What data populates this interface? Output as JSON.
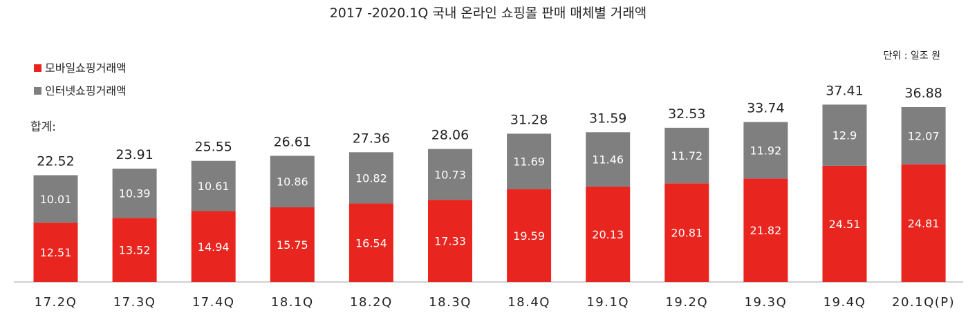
{
  "chart_data": {
    "type": "bar",
    "stacked": true,
    "title": "2017 -2020.1Q 국내 온라인 쇼핑몰 판매 매체별 거래액",
    "unit_label": "단위 : 일조 원",
    "total_label": "합계:",
    "categories": [
      "17.2Q",
      "17.3Q",
      "17.4Q",
      "18.1Q",
      "18.2Q",
      "18.3Q",
      "18.4Q",
      "19.1Q",
      "19.2Q",
      "19.3Q",
      "19.4Q",
      "20.1Q(P)"
    ],
    "series": [
      {
        "name": "모바일쇼핑거래액",
        "color": "#e8251e",
        "values": [
          12.51,
          13.52,
          14.94,
          15.75,
          16.54,
          17.33,
          19.59,
          20.13,
          20.81,
          21.82,
          24.51,
          24.81
        ]
      },
      {
        "name": "인터넷쇼핑거래액",
        "color": "#7f7f7f",
        "values": [
          10.01,
          10.39,
          10.61,
          10.86,
          10.82,
          10.73,
          11.69,
          11.46,
          11.72,
          11.92,
          12.9,
          12.07
        ]
      }
    ],
    "totals": [
      "22.52",
      "23.91",
      "25.55",
      "26.61",
      "27.36",
      "28.06",
      "31.28",
      "31.59",
      "32.53",
      "33.74",
      "37.41",
      "36.88"
    ],
    "ylim": [
      0,
      45
    ],
    "grid": false,
    "legend": "top-left"
  }
}
